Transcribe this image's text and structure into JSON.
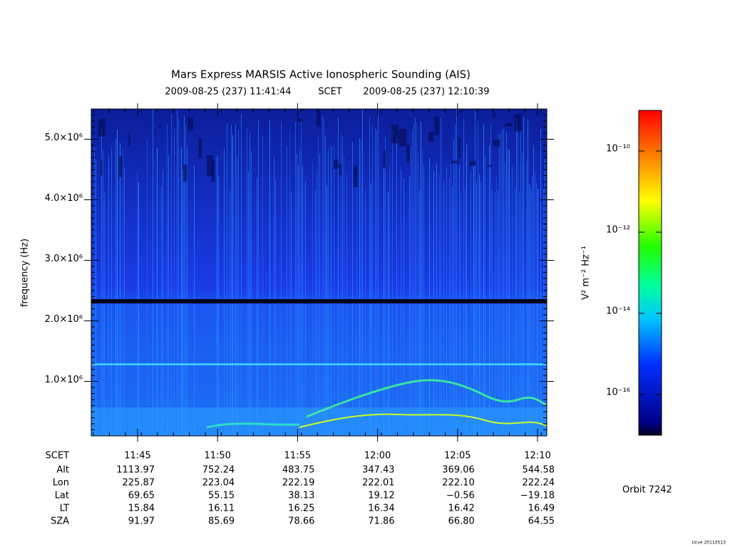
{
  "chart_data": {
    "type": "spectrogram",
    "title": "Mars Express MARSIS Active Ionospheric Sounding (AIS)",
    "subtitle_start": "2009-08-25 (237) 11:41:44",
    "subtitle_mid": "SCET",
    "subtitle_end": "2009-08-25 (237) 12:10:39",
    "ylabel": "frequency (Hz)",
    "ylim": [
      100000,
      5500000
    ],
    "yticks": [
      {
        "value": 1000000,
        "label": "1.0×10⁶"
      },
      {
        "value": 2000000,
        "label": "2.0×10⁶"
      },
      {
        "value": 3000000,
        "label": "3.0×10⁶"
      },
      {
        "value": 4000000,
        "label": "4.0×10⁶"
      },
      {
        "value": 5000000,
        "label": "5.0×10⁶"
      }
    ],
    "colorbar": {
      "label": "V² m⁻² Hz⁻¹",
      "log_scale": true,
      "zlim": [
        1e-17,
        1e-09
      ],
      "ticks": [
        {
          "value": 1e-10,
          "label": "10⁻¹⁰"
        },
        {
          "value": 1e-12,
          "label": "10⁻¹²"
        },
        {
          "value": 1e-14,
          "label": "10⁻¹⁴"
        },
        {
          "value": 1e-16,
          "label": "10⁻¹⁶"
        }
      ]
    },
    "ephemeris": [
      {
        "name": "SCET",
        "values": [
          "11:45",
          "11:50",
          "11:55",
          "12:00",
          "12:05",
          "12:10"
        ]
      },
      {
        "name": "Alt",
        "values": [
          "1113.97",
          "752.24",
          "483.75",
          "347.43",
          "369.06",
          "544.58"
        ]
      },
      {
        "name": "Lon",
        "values": [
          "225.87",
          "223.04",
          "222.19",
          "222.01",
          "222.10",
          "222.24"
        ]
      },
      {
        "name": "Lat",
        "values": [
          "69.65",
          "55.15",
          "38.13",
          "19.12",
          "−0.56",
          "−19.18"
        ]
      },
      {
        "name": "LT",
        "values": [
          "15.84",
          "16.11",
          "16.25",
          "16.34",
          "16.42",
          "16.49"
        ]
      },
      {
        "name": "SZA",
        "values": [
          "91.97",
          "85.69",
          "78.66",
          "71.86",
          "66.80",
          "64.55"
        ]
      }
    ],
    "orbit": "Orbit 7242",
    "footer": "Ucve 20110513"
  }
}
